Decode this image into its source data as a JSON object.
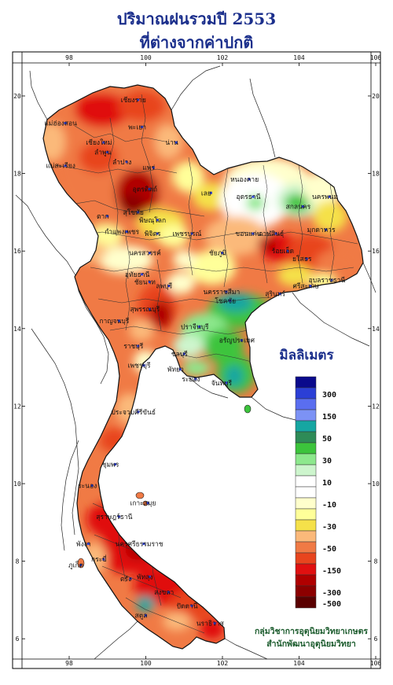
{
  "title_line1": "ปริมาณฝนรวมปี  2553",
  "title_line2": "ที่ต่างจากค่าปกติ",
  "axes": {
    "lon_ticks": [
      "98",
      "100",
      "102",
      "104",
      "106"
    ],
    "lat_ticks": [
      "20",
      "18",
      "16",
      "14",
      "12",
      "10",
      "8",
      "6"
    ]
  },
  "legend": {
    "title": "มิลลิเมตร",
    "unit": "mm",
    "bins": [
      {
        "color": "#0a0a8c",
        "label": ""
      },
      {
        "color": "#2b3fd6",
        "label": "300"
      },
      {
        "color": "#5a6ef0",
        "label": ""
      },
      {
        "color": "#7c92f5",
        "label": "150"
      },
      {
        "color": "#16a6a2",
        "label": ""
      },
      {
        "color": "#2e8b57",
        "label": "50"
      },
      {
        "color": "#3cc43c",
        "label": ""
      },
      {
        "color": "#8de88d",
        "label": "30"
      },
      {
        "color": "#cdf5cd",
        "label": ""
      },
      {
        "color": "#ffffff",
        "label": "10"
      },
      {
        "color": "#ffffff",
        "label": ""
      },
      {
        "color": "#ffffcc",
        "label": "-10"
      },
      {
        "color": "#ffff99",
        "label": ""
      },
      {
        "color": "#f5e14a",
        "label": "-30"
      },
      {
        "color": "#fbb97a",
        "label": ""
      },
      {
        "color": "#f07a45",
        "label": "-50"
      },
      {
        "color": "#e8451e",
        "label": ""
      },
      {
        "color": "#e01010",
        "label": "-150"
      },
      {
        "color": "#b00000",
        "label": ""
      },
      {
        "color": "#8c0000",
        "label": "-300"
      },
      {
        "color": "#5a0000",
        "label": "-500"
      }
    ]
  },
  "places": [
    {
      "name": "เชียงราย",
      "lon": 99.8,
      "lat": 19.9
    },
    {
      "name": "แม่ฮ่องสอน",
      "lon": 97.9,
      "lat": 19.3
    },
    {
      "name": "พะเยา",
      "lon": 99.9,
      "lat": 19.2
    },
    {
      "name": "น่าน",
      "lon": 100.8,
      "lat": 18.8
    },
    {
      "name": "เชียงใหม่",
      "lon": 98.9,
      "lat": 18.8
    },
    {
      "name": "ลำพูน",
      "lon": 99.0,
      "lat": 18.55
    },
    {
      "name": "แพร่",
      "lon": 100.2,
      "lat": 18.15
    },
    {
      "name": "ลำปาง",
      "lon": 99.5,
      "lat": 18.3
    },
    {
      "name": "แม่สะเรียง",
      "lon": 97.9,
      "lat": 18.2
    },
    {
      "name": "อุตรดิตถ์",
      "lon": 100.1,
      "lat": 17.6
    },
    {
      "name": "หนองคาย",
      "lon": 102.7,
      "lat": 17.85
    },
    {
      "name": "อุดรธานี",
      "lon": 102.8,
      "lat": 17.4
    },
    {
      "name": "เลย",
      "lon": 101.7,
      "lat": 17.5
    },
    {
      "name": "สกลนคร",
      "lon": 104.1,
      "lat": 17.15
    },
    {
      "name": "นครพนม",
      "lon": 104.8,
      "lat": 17.4
    },
    {
      "name": "ตาก",
      "lon": 99.0,
      "lat": 16.9
    },
    {
      "name": "สุโขทัย",
      "lon": 99.8,
      "lat": 17.0
    },
    {
      "name": "พิษณุโลก",
      "lon": 100.3,
      "lat": 16.8
    },
    {
      "name": "มุกดาหาร",
      "lon": 104.7,
      "lat": 16.55
    },
    {
      "name": "กำแพงเพชร",
      "lon": 99.5,
      "lat": 16.5
    },
    {
      "name": "พิจิตร",
      "lon": 100.3,
      "lat": 16.45
    },
    {
      "name": "เพชรบูรณ์",
      "lon": 101.2,
      "lat": 16.45
    },
    {
      "name": "ขอนแก่น",
      "lon": 102.8,
      "lat": 16.45
    },
    {
      "name": "กาฬสินธุ์",
      "lon": 103.4,
      "lat": 16.45
    },
    {
      "name": "นครสวรรค์",
      "lon": 100.1,
      "lat": 15.95
    },
    {
      "name": "ชัยภูมิ",
      "lon": 102.0,
      "lat": 15.95
    },
    {
      "name": "ร้อยเอ็ด",
      "lon": 103.7,
      "lat": 16.0
    },
    {
      "name": "ยโสธร",
      "lon": 104.2,
      "lat": 15.8
    },
    {
      "name": "อุบลราชธานี",
      "lon": 104.85,
      "lat": 15.25
    },
    {
      "name": "อุทัยธานี",
      "lon": 99.9,
      "lat": 15.4
    },
    {
      "name": "ลพบุรี",
      "lon": 100.6,
      "lat": 15.1
    },
    {
      "name": "นครราชสีมา",
      "lon": 102.1,
      "lat": 14.95
    },
    {
      "name": "สุรินทร์",
      "lon": 103.5,
      "lat": 14.9
    },
    {
      "name": "ศรีสะเกษ",
      "lon": 104.3,
      "lat": 15.1
    },
    {
      "name": "สุพรรณบุรี",
      "lon": 100.1,
      "lat": 14.5
    },
    {
      "name": "ชัยนาท",
      "lon": 100.1,
      "lat": 15.2
    },
    {
      "name": "โชคชัย",
      "lon": 102.2,
      "lat": 14.72
    },
    {
      "name": "กาญจนบุรี",
      "lon": 99.3,
      "lat": 14.2
    },
    {
      "name": "ปราจีนบุรี",
      "lon": 101.4,
      "lat": 14.05
    },
    {
      "name": "อรัญประเทศ",
      "lon": 102.5,
      "lat": 13.7
    },
    {
      "name": "ราชบุรี",
      "lon": 99.8,
      "lat": 13.55
    },
    {
      "name": "ชลบุรี",
      "lon": 101.0,
      "lat": 13.35
    },
    {
      "name": "เพชรบุรี",
      "lon": 99.95,
      "lat": 13.05
    },
    {
      "name": "พัทยา",
      "lon": 100.9,
      "lat": 12.95
    },
    {
      "name": "ระยอง",
      "lon": 101.3,
      "lat": 12.7
    },
    {
      "name": "จันทบุรี",
      "lon": 102.1,
      "lat": 12.6
    },
    {
      "name": "ประจวบคีรีขันธ์",
      "lon": 99.8,
      "lat": 11.85
    },
    {
      "name": "ชุมพร",
      "lon": 99.2,
      "lat": 10.5
    },
    {
      "name": "ระนอง",
      "lon": 98.6,
      "lat": 9.95
    },
    {
      "name": "เกาะสมุย",
      "lon": 100.05,
      "lat": 9.5
    },
    {
      "name": "สุราษฎร์ธานี",
      "lon": 99.3,
      "lat": 9.15
    },
    {
      "name": "พังงา",
      "lon": 98.5,
      "lat": 8.45
    },
    {
      "name": "นครศรีธรรมราช",
      "lon": 99.95,
      "lat": 8.45
    },
    {
      "name": "กระบี่",
      "lon": 98.9,
      "lat": 8.05
    },
    {
      "name": "ภูเก็ต",
      "lon": 98.3,
      "lat": 7.9
    },
    {
      "name": "ตรัง",
      "lon": 99.6,
      "lat": 7.55
    },
    {
      "name": "พัทลุง",
      "lon": 100.1,
      "lat": 7.6
    },
    {
      "name": "สงขลา",
      "lon": 100.6,
      "lat": 7.2
    },
    {
      "name": "สตูล",
      "lon": 100.0,
      "lat": 6.6
    },
    {
      "name": "ปัตตานี",
      "lon": 101.2,
      "lat": 6.85
    },
    {
      "name": "นราธิวาส",
      "lon": 101.8,
      "lat": 6.4
    }
  ],
  "credit_line1": "กลุ่มวิชาการอุตุนิยมวิทยาเกษตร",
  "credit_line2": "สำนักพัฒนาอุตุนิยมวิทยา"
}
